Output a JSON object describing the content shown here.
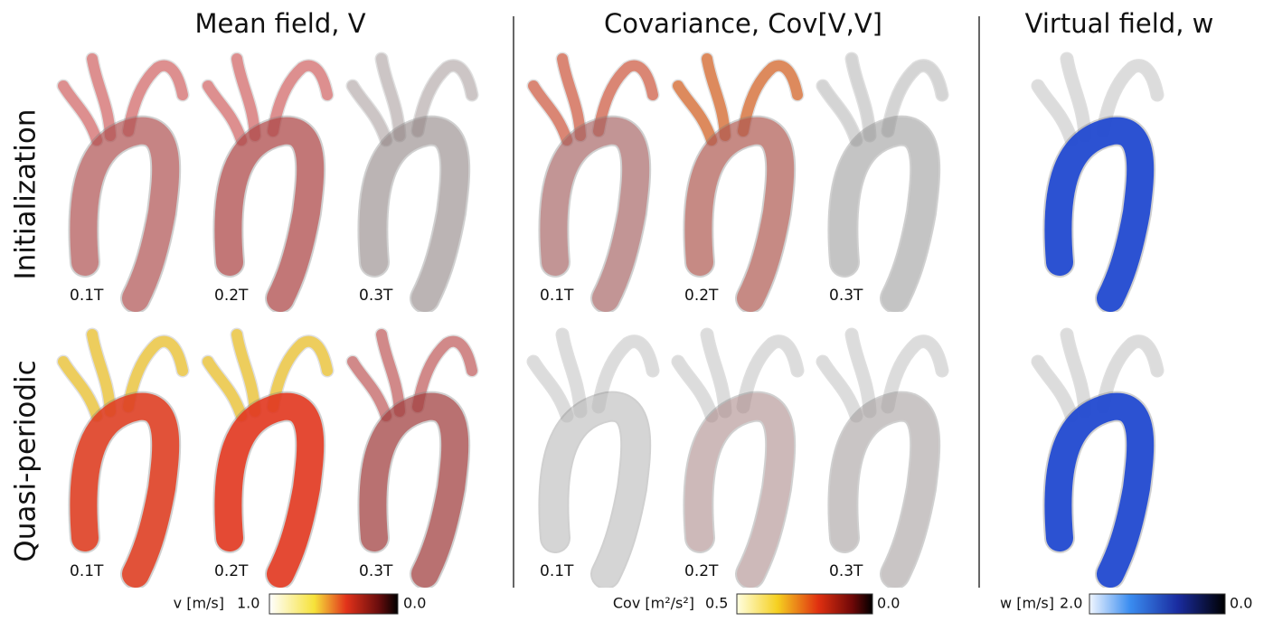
{
  "columns": [
    {
      "title": "Mean field, V",
      "rows": [
        {
          "times": [
            "0.1T",
            "0.2T",
            "0.3T"
          ]
        },
        {
          "times": [
            "0.1T",
            "0.2T",
            "0.3T"
          ]
        }
      ],
      "colorbar": {
        "label": "v [m/s]",
        "max": "1.0",
        "min": "0.0"
      }
    },
    {
      "title": "Covariance, Cov[V,V]",
      "rows": [
        {
          "times": [
            "0.1T",
            "0.2T",
            "0.3T"
          ]
        },
        {
          "times": [
            "0.1T",
            "0.2T",
            "0.3T"
          ]
        }
      ],
      "colorbar": {
        "label": "Cov [m²/s²]",
        "max": "0.5",
        "min": "0.0"
      }
    },
    {
      "title": "Virtual field, w",
      "colorbar": {
        "label": "w [m/s]",
        "max": "2.0",
        "min": "0.0"
      }
    }
  ],
  "row_labels": [
    "Initialization",
    "Quasi-periodic"
  ]
}
